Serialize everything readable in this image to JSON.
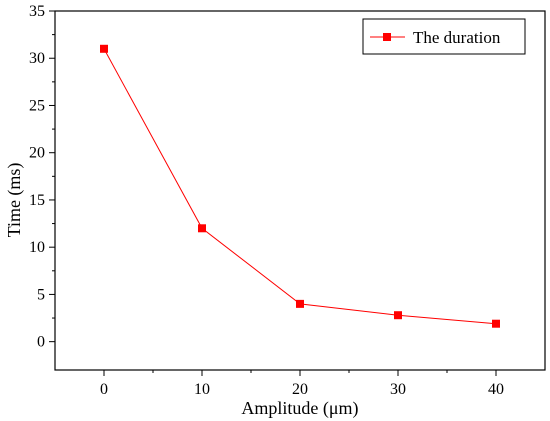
{
  "chart_data": {
    "type": "line",
    "x": [
      0,
      10,
      20,
      30,
      40
    ],
    "series": [
      {
        "name": "The duration",
        "values": [
          31,
          12,
          4,
          2.8,
          1.9
        ]
      }
    ],
    "xlabel": "Amplitude (μm)",
    "ylabel": "Time (ms)",
    "xlim": [
      -5,
      45
    ],
    "ylim": [
      -3,
      35
    ],
    "xticks": [
      0,
      10,
      20,
      30,
      40
    ],
    "yticks": [
      0,
      5,
      10,
      15,
      20,
      25,
      30,
      35
    ],
    "grid": false,
    "legend_position": "top-right",
    "colors": {
      "series": "#ff0000",
      "axis": "#000000"
    }
  }
}
